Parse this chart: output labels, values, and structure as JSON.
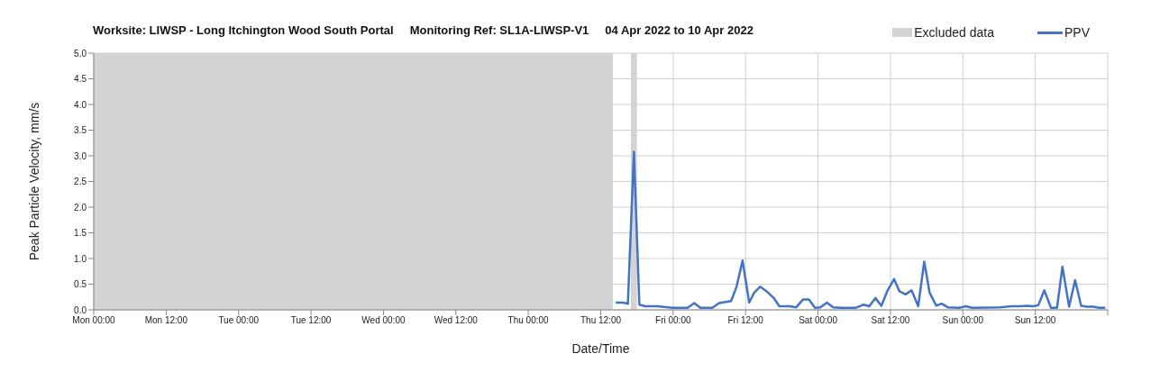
{
  "chart_data": {
    "type": "line",
    "title": "Worksite: LIWSP - Long Itchington Wood South Portal     Monitoring Ref: SL1A-LIWSP-V1     04 Apr 2022 to 10 Apr 2022",
    "xlabel": "Date/Time",
    "ylabel": "Peak Particle Velocity, mm/s",
    "x": [
      "2022-04-07T14:30",
      "2022-04-07T15:42",
      "2022-04-07T16:30",
      "2022-04-07T17:30",
      "2022-04-07T18:24",
      "2022-04-07T19:24",
      "2022-04-07T21:24",
      "2022-04-07T23:54",
      "2022-04-08T02:24",
      "2022-04-08T03:30",
      "2022-04-08T04:30",
      "2022-04-08T06:30",
      "2022-04-08T07:36",
      "2022-04-08T09:36",
      "2022-04-08T10:30",
      "2022-04-08T11:30",
      "2022-04-08T12:36",
      "2022-04-08T13:24",
      "2022-04-08T14:24",
      "2022-04-08T15:36",
      "2022-04-08T16:36",
      "2022-04-08T17:36",
      "2022-04-08T19:18",
      "2022-04-08T20:24",
      "2022-04-08T21:30",
      "2022-04-08T22:30",
      "2022-04-08T23:30",
      "2022-04-09T00:24",
      "2022-04-09T01:30",
      "2022-04-09T02:30",
      "2022-04-09T03:48",
      "2022-04-09T06:18",
      "2022-04-09T07:30",
      "2022-04-09T08:30",
      "2022-04-09T09:30",
      "2022-04-09T10:30",
      "2022-04-09T11:30",
      "2022-04-09T12:36",
      "2022-04-09T13:30",
      "2022-04-09T14:30",
      "2022-04-09T15:30",
      "2022-04-09T16:36",
      "2022-04-09T17:36",
      "2022-04-09T18:30",
      "2022-04-09T19:36",
      "2022-04-09T20:30",
      "2022-04-09T21:30",
      "2022-04-09T23:24",
      "2022-04-10T00:30",
      "2022-04-10T01:30",
      "2022-04-10T06:06",
      "2022-04-10T08:06",
      "2022-04-10T09:30",
      "2022-04-10T10:36",
      "2022-04-10T11:36",
      "2022-04-10T12:30",
      "2022-04-10T13:30",
      "2022-04-10T14:36",
      "2022-04-10T15:36",
      "2022-04-10T16:30",
      "2022-04-10T17:36",
      "2022-04-10T18:36",
      "2022-04-10T19:36",
      "2022-04-10T20:36",
      "2022-04-10T21:36",
      "2022-04-10T22:36",
      "2022-04-10T23:36"
    ],
    "series": [
      {
        "name": "PPV",
        "color": "#4472c4",
        "values": [
          0.14,
          0.14,
          0.12,
          3.08,
          0.1,
          0.07,
          0.07,
          0.04,
          0.04,
          0.13,
          0.04,
          0.04,
          0.13,
          0.17,
          0.45,
          0.96,
          0.14,
          0.33,
          0.45,
          0.35,
          0.24,
          0.07,
          0.07,
          0.05,
          0.2,
          0.2,
          0.04,
          0.05,
          0.14,
          0.05,
          0.04,
          0.04,
          0.1,
          0.07,
          0.23,
          0.08,
          0.37,
          0.6,
          0.36,
          0.3,
          0.38,
          0.07,
          0.94,
          0.33,
          0.08,
          0.12,
          0.05,
          0.04,
          0.07,
          0.04,
          0.05,
          0.07,
          0.07,
          0.08,
          0.07,
          0.09,
          0.38,
          0.04,
          0.04,
          0.84,
          0.06,
          0.58,
          0.08,
          0.06,
          0.06,
          0.04,
          0.04
        ]
      }
    ],
    "xlim": [
      "2022-04-04T00:00",
      "2022-04-11T00:00"
    ],
    "xticks": [
      {
        "value": "2022-04-04T00:00",
        "label": "Mon 00:00"
      },
      {
        "value": "2022-04-04T12:00",
        "label": "Mon 12:00"
      },
      {
        "value": "2022-04-05T00:00",
        "label": "Tue 00:00"
      },
      {
        "value": "2022-04-05T12:00",
        "label": "Tue 12:00"
      },
      {
        "value": "2022-04-06T00:00",
        "label": "Wed 00:00"
      },
      {
        "value": "2022-04-06T12:00",
        "label": "Wed 12:00"
      },
      {
        "value": "2022-04-07T00:00",
        "label": "Thu 00:00"
      },
      {
        "value": "2022-04-07T12:00",
        "label": "Thu 12:00"
      },
      {
        "value": "2022-04-08T00:00",
        "label": "Fri 00:00"
      },
      {
        "value": "2022-04-08T12:00",
        "label": "Fri 12:00"
      },
      {
        "value": "2022-04-09T00:00",
        "label": "Sat 00:00"
      },
      {
        "value": "2022-04-09T12:00",
        "label": "Sat 12:00"
      },
      {
        "value": "2022-04-10T00:00",
        "label": "Sun 00:00"
      },
      {
        "value": "2022-04-10T12:00",
        "label": "Sun 12:00"
      },
      {
        "value": "2022-04-11T00:00",
        "label": null
      }
    ],
    "ylim": [
      0,
      5
    ],
    "yticks": [
      {
        "value": 0,
        "label": "0.0"
      },
      {
        "value": 0.5,
        "label": "0.5"
      },
      {
        "value": 1,
        "label": "1.0"
      },
      {
        "value": 1.5,
        "label": "1.5"
      },
      {
        "value": 2,
        "label": "2.0"
      },
      {
        "value": 2.5,
        "label": "2.5"
      },
      {
        "value": 3,
        "label": "3.0"
      },
      {
        "value": 3.5,
        "label": "3.5"
      },
      {
        "value": 4,
        "label": "4.0"
      },
      {
        "value": 4.5,
        "label": "4.5"
      },
      {
        "value": 5,
        "label": "5.0"
      }
    ],
    "bands": [
      {
        "axis": "x",
        "from": "2022-04-04T00:00",
        "to": "2022-04-07T14:00",
        "label": "Excluded data",
        "color": "#d3d3d3"
      },
      {
        "axis": "x",
        "from": "2022-04-07T17:00",
        "to": "2022-04-07T18:00",
        "color": "#d3d3d3"
      }
    ],
    "grid": true,
    "legend": "top right"
  }
}
